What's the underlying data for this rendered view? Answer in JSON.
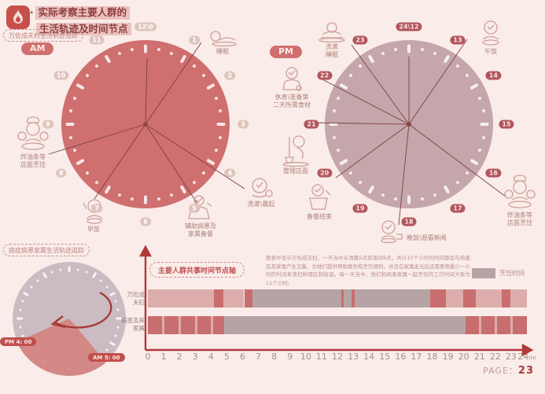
{
  "header": {
    "bullet": "·",
    "title_line1": "实际考察主要人群的",
    "title_line2": "生活轨迹及时间节点"
  },
  "colors": {
    "background": "#f9ece9",
    "am_face": "#d06f6f",
    "pm_face": "#c5a6ab",
    "mini_face": "#cbbcc3",
    "accent_red": "#c8504a",
    "idle_bar": "#dcadac",
    "active_bar": "#c96e6e",
    "cooking_bar": "#b6a3a5"
  },
  "am_clock": {
    "tracker_label": "万佐成夫妇生活轨迹追踪",
    "period_label": "AM",
    "numbers": [
      "12\\0",
      "1",
      "2",
      "3",
      "4",
      "5",
      "6",
      "7",
      "8",
      "9",
      "10",
      "11"
    ],
    "activities": [
      {
        "label": "睡眠",
        "icon": "sleep-icon"
      },
      {
        "label": "洗漱\\晨起",
        "icon": "wash-icon"
      },
      {
        "label": "辅助病患及\n家属备餐",
        "icon": "assist-prep-icon"
      },
      {
        "label": "早饭",
        "icon": "breakfast-icon"
      },
      {
        "label": "炸油条等\n店面烹饪",
        "icon": "chef-cooking-icon"
      }
    ]
  },
  "pm_clock": {
    "period_label": "PM",
    "numbers": [
      "24\\12",
      "13",
      "14",
      "15",
      "16",
      "17",
      "18",
      "19",
      "20",
      "21",
      "22",
      "23"
    ],
    "activities": [
      {
        "label": "洗漱\n睡眠",
        "icon": "wash-sleep-icon"
      },
      {
        "label": "休息\\准备第\n二天所需食材",
        "icon": "rest-prepare-icon"
      },
      {
        "label": "午饭",
        "icon": "lunch-icon"
      },
      {
        "label": "炸油条等\n店面烹饪",
        "icon": "chef-cooking-icon"
      },
      {
        "label": "晚饭\\观看新闻",
        "icon": "dinner-news-icon"
      },
      {
        "label": "备餐结束",
        "icon": "prep-done-icon"
      },
      {
        "label": "整理店面",
        "icon": "tidy-shop-icon"
      }
    ]
  },
  "mini_clock": {
    "tracker_label": "癌症病患家属生活轨迹追踪",
    "start_badge": "PM 4: 00",
    "end_badge": "AM 5: 00"
  },
  "timeline": {
    "section_label": "主要人群共事时间节点轴",
    "description": "图表中显示万佐成夫妇，一天当中从清晨5点到夜间8点，共计15个小时的时间都会与病患及其家属产生交集，为他们提供帮助服务和烹饪便利，并且在家属走光后还需要用最少一小时的时间来清扫料理区和街道。每一天当中，他们和病患家属一起烹饪的工作时间大致为11个小时。",
    "legend_label": "烹饪时间",
    "axis_unit": "(H)"
  },
  "page": {
    "label": "PAGE：",
    "number": "23"
  },
  "chart_data": {
    "type": "gantt-timeline",
    "x_range": [
      0,
      24
    ],
    "x_tick_step": 1,
    "x_unit": "(H)",
    "legend": [
      {
        "label": "烹饪时间",
        "type": "cooking"
      }
    ],
    "color_map": {
      "idle": "#dcadac",
      "active": "#c96e6e",
      "cooking": "#b6a3a5"
    },
    "rows": [
      {
        "label": "万佐成\n夫妇",
        "segments": [
          {
            "start": 0,
            "end": 4.2,
            "type": "idle"
          },
          {
            "start": 4.2,
            "end": 4.8,
            "type": "active"
          },
          {
            "start": 4.8,
            "end": 6.1,
            "type": "idle"
          },
          {
            "start": 6.1,
            "end": 6.6,
            "type": "active"
          },
          {
            "start": 6.6,
            "end": 12.25,
            "type": "cooking"
          },
          {
            "start": 12.25,
            "end": 12.4,
            "type": "active"
          },
          {
            "start": 12.4,
            "end": 12.9,
            "type": "cooking"
          },
          {
            "start": 12.9,
            "end": 13.1,
            "type": "active"
          },
          {
            "start": 13.1,
            "end": 17.9,
            "type": "cooking"
          },
          {
            "start": 17.9,
            "end": 18.85,
            "type": "active"
          },
          {
            "start": 18.85,
            "end": 19.95,
            "type": "idle"
          },
          {
            "start": 19.95,
            "end": 20.75,
            "type": "active"
          },
          {
            "start": 20.75,
            "end": 22.4,
            "type": "idle"
          },
          {
            "start": 22.4,
            "end": 22.95,
            "type": "active"
          },
          {
            "start": 22.95,
            "end": 24,
            "type": "idle"
          }
        ]
      },
      {
        "label": "病患及其\n家属",
        "segments": [
          {
            "start": 0,
            "end": 0.9,
            "type": "active"
          },
          {
            "start": 0.9,
            "end": 1.05,
            "type": "idle"
          },
          {
            "start": 1.05,
            "end": 1.95,
            "type": "active"
          },
          {
            "start": 1.95,
            "end": 2.1,
            "type": "idle"
          },
          {
            "start": 2.1,
            "end": 3.0,
            "type": "active"
          },
          {
            "start": 3.0,
            "end": 3.15,
            "type": "idle"
          },
          {
            "start": 3.15,
            "end": 4.0,
            "type": "active"
          },
          {
            "start": 4.0,
            "end": 4.15,
            "type": "idle"
          },
          {
            "start": 4.15,
            "end": 4.85,
            "type": "active"
          },
          {
            "start": 4.85,
            "end": 20.1,
            "type": "cooking"
          },
          {
            "start": 20.1,
            "end": 20.95,
            "type": "active"
          },
          {
            "start": 20.95,
            "end": 21.1,
            "type": "idle"
          },
          {
            "start": 21.1,
            "end": 21.95,
            "type": "active"
          },
          {
            "start": 21.95,
            "end": 22.1,
            "type": "idle"
          },
          {
            "start": 22.1,
            "end": 22.95,
            "type": "active"
          },
          {
            "start": 22.95,
            "end": 23.1,
            "type": "idle"
          },
          {
            "start": 23.1,
            "end": 24,
            "type": "active"
          }
        ]
      }
    ]
  }
}
